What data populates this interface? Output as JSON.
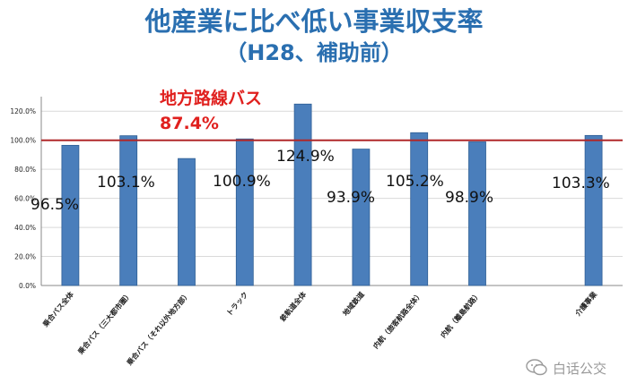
{
  "chart_data": {
    "type": "bar",
    "title": "他産業に比べ低い事業収支率",
    "subtitle": "（H28、補助前）",
    "categories": [
      "乗合バス全体",
      "乗合バス（三大都市圏）",
      "乗合バス（それ以外地方部）",
      "トラック",
      "鉄軌道全体",
      "地域鉄道",
      "内航（旅客航路全体）",
      "内航（離島航路）",
      "",
      "介護事業"
    ],
    "values": [
      96.5,
      103.1,
      87.4,
      100.9,
      124.9,
      93.9,
      105.2,
      98.9,
      null,
      103.3
    ],
    "data_labels": [
      "96.5%",
      "103.1%",
      "",
      "100.9%",
      "124.9%",
      "93.9%",
      "105.2%",
      "98.9%",
      "",
      "103.3%"
    ],
    "y_ticks": [
      "0.0%",
      "20.0%",
      "40.0%",
      "60.0%",
      "80.0%",
      "100.0%",
      "120.0%"
    ],
    "ylim": [
      0,
      130
    ],
    "grid": true,
    "bar_color": "#4a7ebb",
    "reference_line": {
      "value": 100,
      "color": "#b0282a"
    },
    "annotation": {
      "label": "地方路線バス",
      "value_text": "87.4%",
      "color": "#e0201e"
    }
  },
  "title_color": "#2a6fb0",
  "watermark": {
    "text": "白话公交",
    "icon": "wechat-bubble-icon"
  }
}
